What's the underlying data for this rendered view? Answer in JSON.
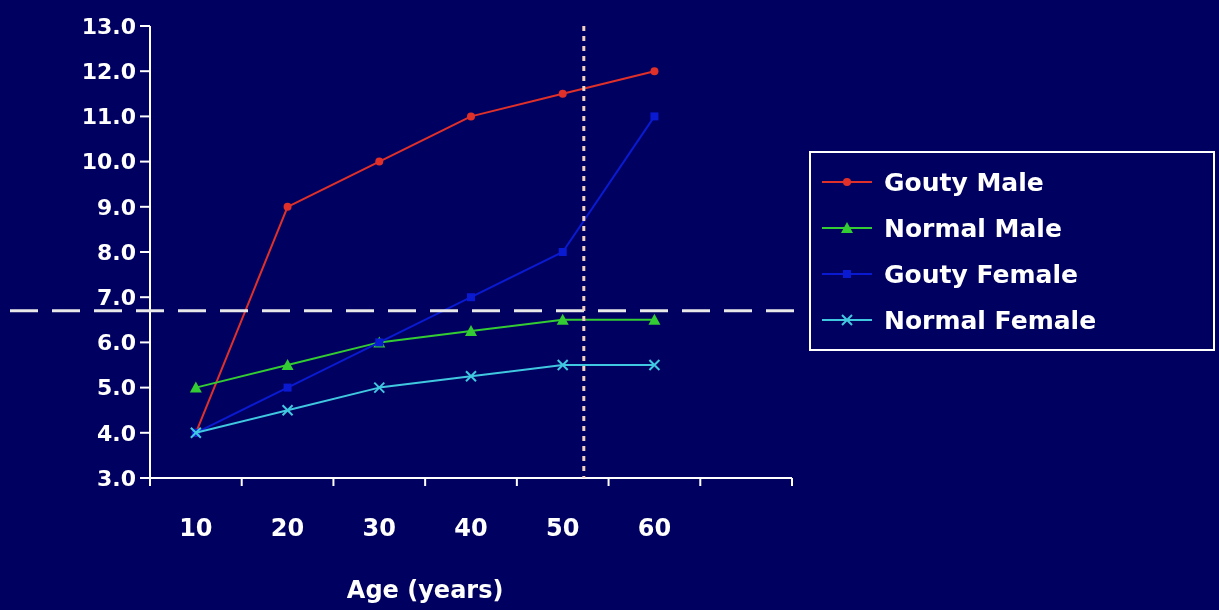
{
  "chart_data": {
    "type": "line",
    "xlabel": "Age (years)",
    "x": [
      10,
      20,
      30,
      40,
      50,
      60
    ],
    "xlim": [
      5,
      75
    ],
    "xticks": [
      {
        "value": 5,
        "label": null
      },
      10,
      {
        "value": 15,
        "label": null
      },
      20,
      {
        "value": 25,
        "label": null
      },
      30,
      {
        "value": 35,
        "label": null
      },
      40,
      {
        "value": 45,
        "label": null
      },
      50,
      {
        "value": 55,
        "label": null
      },
      60,
      {
        "value": 65,
        "label": null
      },
      {
        "value": 75,
        "label": null
      }
    ],
    "ylim": [
      3,
      13
    ],
    "yticks": [
      {
        "value": 3,
        "label": "3.0"
      },
      {
        "value": 4,
        "label": "4.0"
      },
      {
        "value": 5,
        "label": "5.0"
      },
      {
        "value": 6,
        "label": "6.0"
      },
      {
        "value": 7,
        "label": "7.0"
      },
      {
        "value": 8,
        "label": "8.0"
      },
      {
        "value": 9,
        "label": "9.0"
      },
      {
        "value": 10,
        "label": "10.0"
      },
      {
        "value": 11,
        "label": "11.0"
      },
      {
        "value": 12,
        "label": "12.0"
      },
      {
        "value": 13,
        "label": "13.0"
      }
    ],
    "series": [
      {
        "name": "Gouty Male",
        "color": "#e0302a",
        "marker": "circle",
        "values": [
          4.0,
          9.0,
          10.0,
          11.0,
          11.5,
          12.0
        ]
      },
      {
        "name": "Normal Male",
        "color": "#33cc33",
        "marker": "triangle",
        "values": [
          5.0,
          5.5,
          6.0,
          6.25,
          6.5,
          6.5
        ]
      },
      {
        "name": "Gouty Female",
        "color": "#0a1ad0",
        "marker": "square",
        "values": [
          4.0,
          5.0,
          6.0,
          7.0,
          8.0,
          11.0
        ]
      },
      {
        "name": "Normal Female",
        "color": "#40c8e0",
        "marker": "cross",
        "values": [
          4.0,
          4.5,
          5.0,
          5.25,
          5.5,
          5.5
        ]
      }
    ],
    "ref_lines": [
      {
        "axis": "y",
        "value": 6.7,
        "color": "#e8e8e8",
        "line_style": "dashed"
      },
      {
        "axis": "x",
        "value": 52.3,
        "color": "#f0d0c0",
        "line_style": "dotted"
      }
    ],
    "grid": false,
    "legend": "right"
  }
}
